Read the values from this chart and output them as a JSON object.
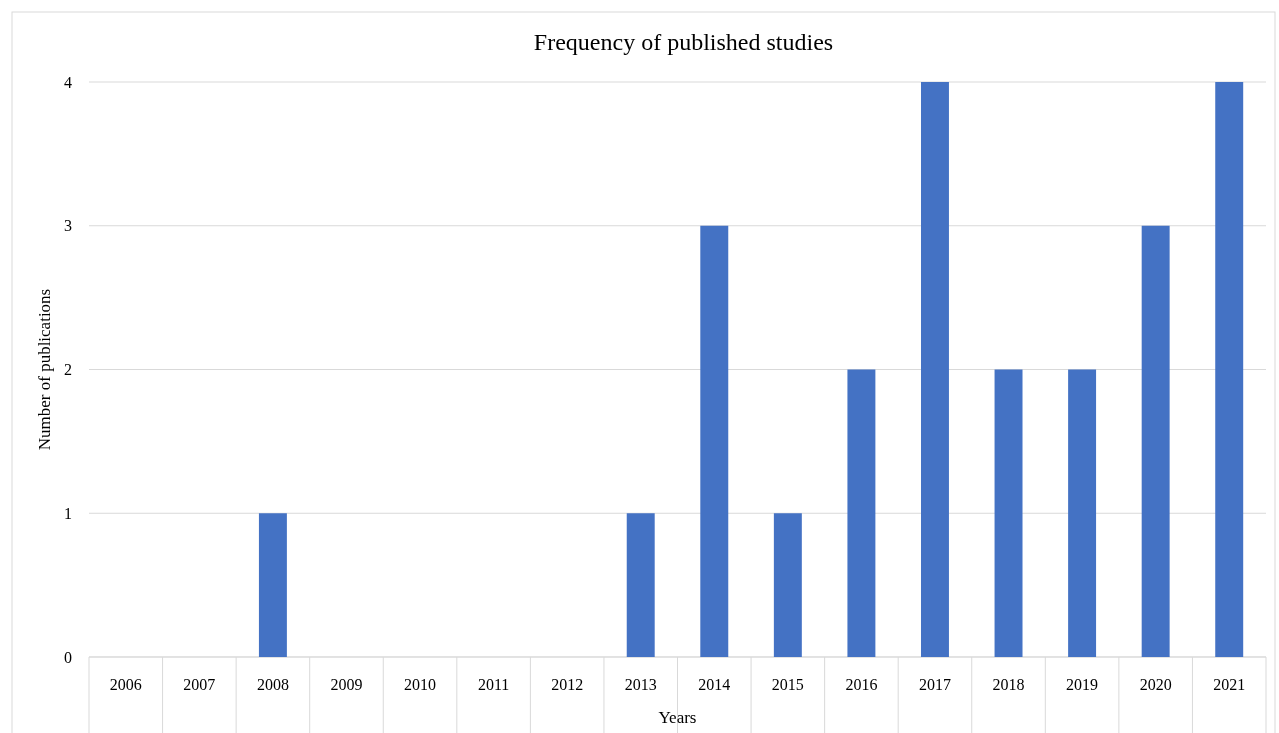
{
  "chart_data": {
    "type": "bar",
    "title": "Frequency of published studies",
    "xlabel": "Years",
    "ylabel": "Number of publications",
    "categories": [
      "2006",
      "2007",
      "2008",
      "2009",
      "2010",
      "2011",
      "2012",
      "2013",
      "2014",
      "2015",
      "2016",
      "2017",
      "2018",
      "2019",
      "2020",
      "2021"
    ],
    "values": [
      0,
      0,
      1,
      0,
      0,
      0,
      0,
      1,
      3,
      1,
      2,
      4,
      2,
      2,
      3,
      4
    ],
    "color": "#4472c4",
    "ylim": [
      0,
      4
    ],
    "yticks": [
      0,
      1,
      2,
      3,
      4
    ],
    "grid": "y"
  }
}
